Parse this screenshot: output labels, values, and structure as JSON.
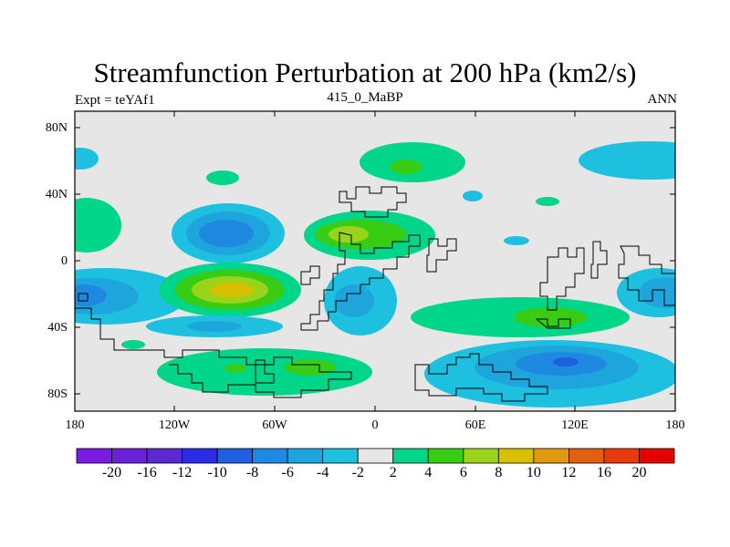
{
  "title": "Streamfunction Perturbation at 200 hPa (km2/s)",
  "subtitle_left": "Expt = teYAf1",
  "subtitle_center": "415_0_MaBP",
  "subtitle_right": "ANN",
  "lat_labels": [
    "80N",
    "40N",
    "0",
    "40S",
    "80S"
  ],
  "lon_labels": [
    "180",
    "120W",
    "60W",
    "0",
    "60E",
    "120E",
    "180"
  ],
  "colorbar": {
    "labels": [
      "-20",
      "-16",
      "-12",
      "-10",
      "-8",
      "-6",
      "-4",
      "-2",
      "2",
      "4",
      "6",
      "8",
      "10",
      "12",
      "16",
      "20"
    ],
    "colors": [
      "#7a1be3",
      "#6a22d9",
      "#5a2ad0",
      "#2b2be8",
      "#1f5fe0",
      "#1f88e0",
      "#1ea6dc",
      "#1ec0e0",
      "#e6e6e6",
      "#00d68a",
      "#38cc14",
      "#9ad41a",
      "#d8c000",
      "#e09a10",
      "#e06010",
      "#e83a0c",
      "#e60000"
    ]
  }
}
